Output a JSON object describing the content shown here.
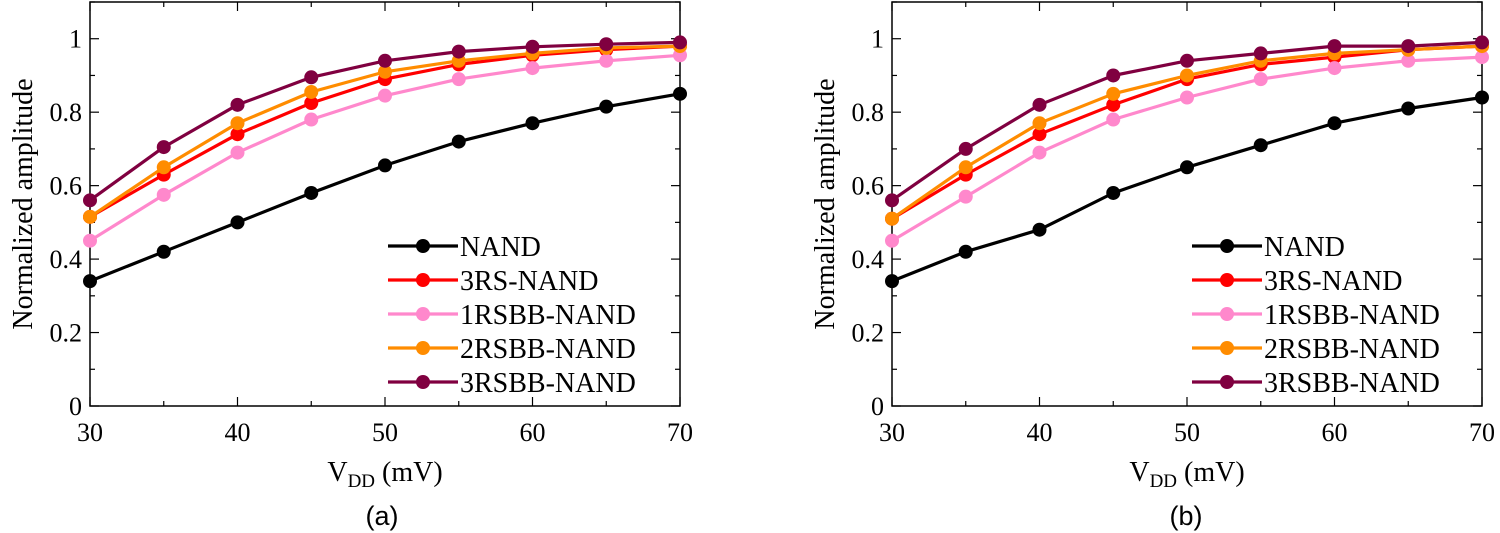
{
  "chart_data": [
    {
      "type": "line",
      "panel_label": "(a)",
      "xlabel_main": "V",
      "xlabel_sub": "DD",
      "xlabel_unit": " (mV)",
      "ylabel": "Normalized amplitude",
      "xlim": [
        30,
        70
      ],
      "ylim": [
        0,
        1.1
      ],
      "xticks": [
        "30",
        "40",
        "50",
        "60",
        "70"
      ],
      "yticks": [
        "0",
        "0.2",
        "0.4",
        "0.6",
        "0.8",
        "1"
      ],
      "x": [
        30,
        35,
        40,
        45,
        50,
        55,
        60,
        65,
        70
      ],
      "grid": false,
      "legend_position": "bottom-right",
      "series": [
        {
          "name": "NAND",
          "color": "#000000",
          "values": [
            0.34,
            0.42,
            0.5,
            0.58,
            0.655,
            0.72,
            0.77,
            0.815,
            0.85
          ]
        },
        {
          "name": "3RS-NAND",
          "color": "#ff0000",
          "values": [
            0.515,
            0.63,
            0.74,
            0.825,
            0.89,
            0.93,
            0.955,
            0.97,
            0.98
          ]
        },
        {
          "name": "1RSBB-NAND",
          "color": "#ff88cc",
          "values": [
            0.45,
            0.575,
            0.69,
            0.78,
            0.845,
            0.89,
            0.92,
            0.94,
            0.955
          ]
        },
        {
          "name": "2RSBB-NAND",
          "color": "#ff8c00",
          "values": [
            0.515,
            0.65,
            0.77,
            0.855,
            0.91,
            0.94,
            0.96,
            0.975,
            0.98
          ]
        },
        {
          "name": "3RSBB-NAND",
          "color": "#800040",
          "values": [
            0.56,
            0.705,
            0.82,
            0.895,
            0.94,
            0.965,
            0.978,
            0.985,
            0.99
          ]
        }
      ]
    },
    {
      "type": "line",
      "panel_label": "(b)",
      "xlabel_main": "V",
      "xlabel_sub": "DD",
      "xlabel_unit": " (mV)",
      "ylabel": "Normalized amplitude",
      "xlim": [
        30,
        70
      ],
      "ylim": [
        0,
        1.1
      ],
      "xticks": [
        "30",
        "40",
        "50",
        "60",
        "70"
      ],
      "yticks": [
        "0",
        "0.2",
        "0.4",
        "0.6",
        "0.8",
        "1"
      ],
      "x": [
        30,
        35,
        40,
        45,
        50,
        55,
        60,
        65,
        70
      ],
      "grid": false,
      "legend_position": "bottom-right",
      "series": [
        {
          "name": "NAND",
          "color": "#000000",
          "values": [
            0.34,
            0.42,
            0.48,
            0.58,
            0.65,
            0.71,
            0.77,
            0.81,
            0.84
          ]
        },
        {
          "name": "3RS-NAND",
          "color": "#ff0000",
          "values": [
            0.51,
            0.63,
            0.74,
            0.82,
            0.89,
            0.93,
            0.95,
            0.97,
            0.98
          ]
        },
        {
          "name": "1RSBB-NAND",
          "color": "#ff88cc",
          "values": [
            0.45,
            0.57,
            0.69,
            0.78,
            0.84,
            0.89,
            0.92,
            0.94,
            0.95
          ]
        },
        {
          "name": "2RSBB-NAND",
          "color": "#ff8c00",
          "values": [
            0.51,
            0.65,
            0.77,
            0.85,
            0.9,
            0.94,
            0.96,
            0.97,
            0.98
          ]
        },
        {
          "name": "3RSBB-NAND",
          "color": "#800040",
          "values": [
            0.56,
            0.7,
            0.82,
            0.9,
            0.94,
            0.96,
            0.98,
            0.98,
            0.99
          ]
        }
      ]
    }
  ]
}
